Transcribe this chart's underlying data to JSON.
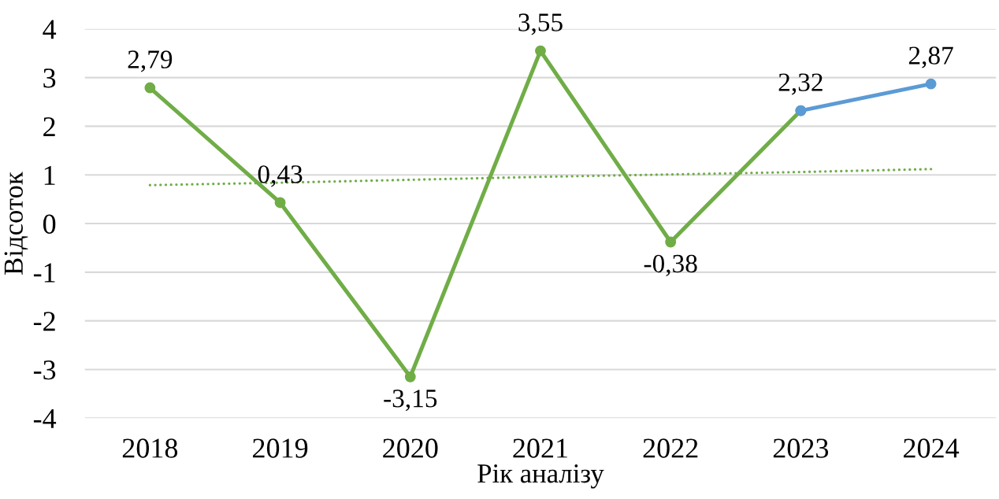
{
  "chart_data": {
    "type": "line",
    "xlabel": "Рік аналізу",
    "ylabel": "Відсоток",
    "categories": [
      "2018",
      "2019",
      "2020",
      "2021",
      "2022",
      "2023",
      "2024"
    ],
    "series": [
      {
        "color": "#70ad47",
        "marker": "circle",
        "line_style": "solid",
        "values": [
          2.79,
          0.43,
          -3.15,
          3.55,
          -0.38,
          2.32,
          null
        ],
        "value_labels": [
          "2,79",
          "0,43",
          "-3,15",
          "3,55",
          "-0,38",
          "2,32",
          null
        ]
      },
      {
        "color": "#5b9bd5",
        "marker": "circle",
        "line_style": "solid",
        "values": [
          null,
          null,
          null,
          null,
          null,
          2.32,
          2.87
        ],
        "value_labels": [
          null,
          null,
          null,
          null,
          null,
          null,
          "2,87"
        ]
      },
      {
        "color": "#70ad47",
        "marker": "none",
        "line_style": "dotted",
        "values": [
          0.79,
          0.84,
          0.9,
          0.96,
          1.01,
          1.06,
          1.12
        ]
      }
    ],
    "ylim": [
      -4,
      4
    ],
    "yticks": [
      -4,
      -3,
      -2,
      -1,
      0,
      1,
      2,
      3,
      4
    ],
    "grid": "y"
  }
}
